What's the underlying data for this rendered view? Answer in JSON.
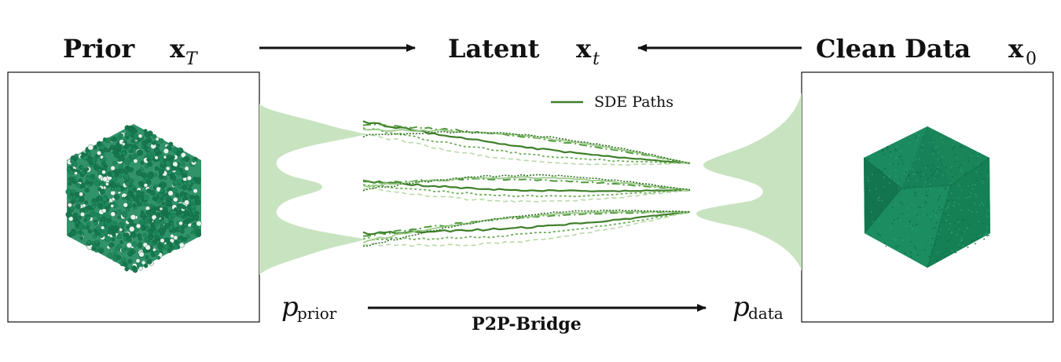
{
  "header": {
    "prior_word": "Prior",
    "prior_sym": "x",
    "prior_sub": "T",
    "latent_word": "Latent",
    "latent_sym": "x",
    "latent_sub": "t",
    "clean_word": "Clean Data",
    "clean_sym": "x",
    "clean_sub": "0"
  },
  "legend": {
    "label": "SDE Paths"
  },
  "bottom": {
    "p_prior_sym": "p",
    "p_prior_sub": "prior",
    "bridge_label": "P2P-Bridge",
    "p_data_sym": "p",
    "p_data_sub": "data"
  },
  "colors": {
    "point_green": "#1f8a5c",
    "path_dark": "#3f7f2a",
    "path_light": "#b7d9a8",
    "density_fill": "#c8e3c0",
    "text": "#111111"
  }
}
